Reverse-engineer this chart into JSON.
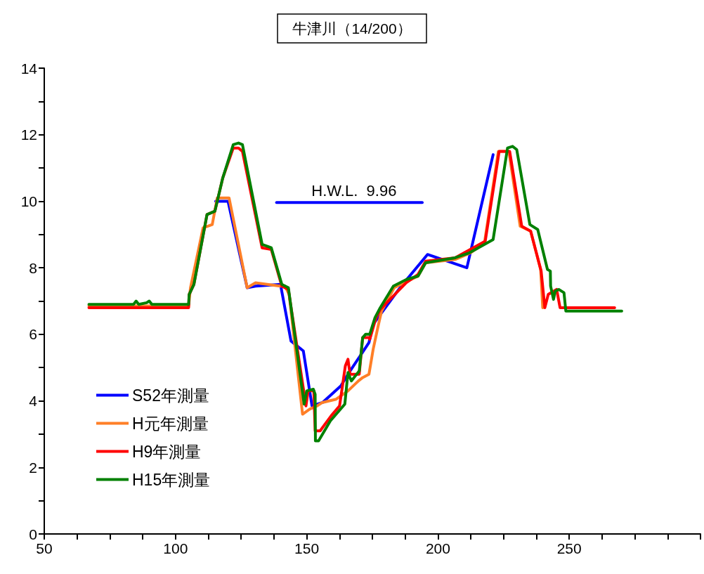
{
  "chart_data": {
    "type": "line",
    "title": "牛津川（14/200）",
    "legend": "bottom left",
    "grid": false,
    "marker": "none",
    "line_style": "solid",
    "xlim": [
      50,
      300
    ],
    "xticks": [
      50,
      {
        "value": 62.5,
        "label": null
      },
      {
        "value": 75,
        "label": null
      },
      {
        "value": 87.5,
        "label": null
      },
      100,
      {
        "value": 112.5,
        "label": null
      },
      {
        "value": 125,
        "label": null
      },
      {
        "value": 137.5,
        "label": null
      },
      150,
      {
        "value": 162.5,
        "label": null
      },
      {
        "value": 175,
        "label": null
      },
      {
        "value": 187.5,
        "label": null
      },
      200,
      {
        "value": 212.5,
        "label": null
      },
      {
        "value": 225,
        "label": null
      },
      {
        "value": 237.5,
        "label": null
      },
      250,
      {
        "value": 262.5,
        "label": null
      },
      {
        "value": 275,
        "label": null
      },
      {
        "value": 287.5,
        "label": null
      },
      {
        "value": 300,
        "label": null
      }
    ],
    "ylim": [
      0,
      14
    ],
    "yticks": [
      0,
      {
        "value": 1,
        "label": null
      },
      2,
      {
        "value": 3,
        "label": null
      },
      4,
      {
        "value": 5,
        "label": null
      },
      6,
      {
        "value": 7,
        "label": null
      },
      8,
      {
        "value": 9,
        "label": null
      },
      10,
      {
        "value": 11,
        "label": null
      },
      12,
      {
        "value": 13,
        "label": null
      },
      14
    ],
    "annotations": [
      {
        "text": "H.W.L.  9.96",
        "x": 168,
        "y": 9.96
      }
    ],
    "series": [
      {
        "name": "S52年測量",
        "color": "#0000ff",
        "x": [
          115.3,
          120,
          127.3,
          130.5,
          140,
          144,
          148.7,
          152,
          156,
          163,
          165.7,
          173.7,
          175.3,
          186,
          196,
          211,
          221
        ],
        "values": [
          10,
          10,
          7.4,
          7.45,
          7.5,
          5.8,
          5.5,
          3.85,
          3.95,
          4.45,
          4.8,
          5.75,
          6.3,
          7.45,
          8.4,
          8,
          11.4
        ]
      },
      {
        "name": "H元年測量",
        "color": "#ff7f27",
        "x": [
          67,
          105,
          105.7,
          110.5,
          114,
          115.9,
          120.4,
          127.3,
          130.5,
          139.9,
          141.7,
          143.3,
          148.4,
          151.1,
          154,
          155.9,
          161.2,
          165.7,
          169.7,
          171.3,
          173.7,
          175.3,
          177.2,
          178.5,
          183.3,
          192.4,
          195.3,
          206.5,
          212.4,
          217.7,
          223,
          227,
          231.3,
          235.3,
          239.1,
          239.9
        ],
        "values": [
          6.85,
          6.85,
          7.4,
          9.2,
          9.3,
          10.1,
          10.1,
          7.4,
          7.55,
          7.45,
          7.45,
          7.2,
          3.6,
          3.75,
          3.85,
          3.95,
          4.05,
          4.3,
          4.6,
          4.7,
          4.8,
          5.55,
          6.25,
          6.7,
          7.4,
          7.75,
          8.15,
          8.25,
          8.45,
          8.75,
          11.5,
          11.5,
          9.25,
          9.1,
          7.95,
          6.8
        ]
      },
      {
        "name": "H9年測量",
        "color": "#ff0000",
        "x": [
          67,
          105,
          105.2,
          107,
          112,
          115,
          118,
          122,
          124,
          125.5,
          133,
          136.5,
          140.5,
          143,
          149.7,
          150.5,
          152.7,
          153.2,
          155.1,
          159.3,
          162.5,
          164.7,
          165.7,
          166.5,
          170,
          171.3,
          173.7,
          174,
          176.4,
          178,
          187.9,
          192.4,
          195.3,
          206.5,
          218,
          223.3,
          227.3,
          231.9,
          235.3,
          239.3,
          240.7,
          242,
          245.2,
          246.5,
          267.3
        ],
        "values": [
          6.8,
          6.8,
          7.2,
          7.5,
          9.6,
          9.7,
          10.7,
          11.6,
          11.6,
          11.5,
          8.6,
          8.55,
          7.45,
          7.35,
          3.85,
          4.3,
          4.3,
          3.1,
          3.1,
          3.55,
          3.85,
          5.05,
          5.25,
          4.8,
          4.8,
          5.9,
          5.9,
          5.85,
          6.5,
          6.75,
          7.55,
          7.8,
          8.2,
          8.3,
          8.8,
          11.5,
          11.5,
          9.25,
          9.1,
          7.9,
          6.8,
          7.2,
          7.35,
          6.8,
          6.8
        ]
      },
      {
        "name": "H15年測量",
        "color": "#008000",
        "x": [
          67,
          84,
          85,
          86,
          89,
          90,
          91,
          105,
          105.2,
          107,
          112,
          115,
          118,
          122,
          124,
          125.5,
          133,
          136.5,
          140.5,
          143,
          149,
          150,
          152.5,
          153.2,
          153.3,
          154.5,
          159,
          164.5,
          165.7,
          167,
          170,
          171.3,
          172.4,
          174,
          176,
          178,
          183,
          188,
          192.4,
          195.3,
          206.5,
          212,
          221,
          226.5,
          228.4,
          230,
          235,
          238,
          241.7,
          242.8,
          242.9,
          244,
          244.7,
          246,
          248,
          248.7,
          270
        ],
        "values": [
          6.9,
          6.9,
          7,
          6.9,
          6.95,
          7,
          6.9,
          6.9,
          7.2,
          7.5,
          9.6,
          9.7,
          10.7,
          11.7,
          11.75,
          11.7,
          8.7,
          8.6,
          7.5,
          7.4,
          3.9,
          4.3,
          4.35,
          4.2,
          2.8,
          2.8,
          3.4,
          3.9,
          4.85,
          4.6,
          4.9,
          5.9,
          6,
          6,
          6.5,
          6.8,
          7.45,
          7.65,
          7.75,
          8.15,
          8.3,
          8.45,
          8.85,
          11.6,
          11.65,
          11.55,
          9.3,
          9.15,
          7.95,
          7.9,
          7.45,
          7.05,
          7.3,
          7.35,
          7.25,
          6.7,
          6.7
        ]
      },
      {
        "color": "#0000ff",
        "x": [
          138.5,
          194
        ],
        "values": [
          9.96,
          9.96
        ]
      }
    ]
  }
}
